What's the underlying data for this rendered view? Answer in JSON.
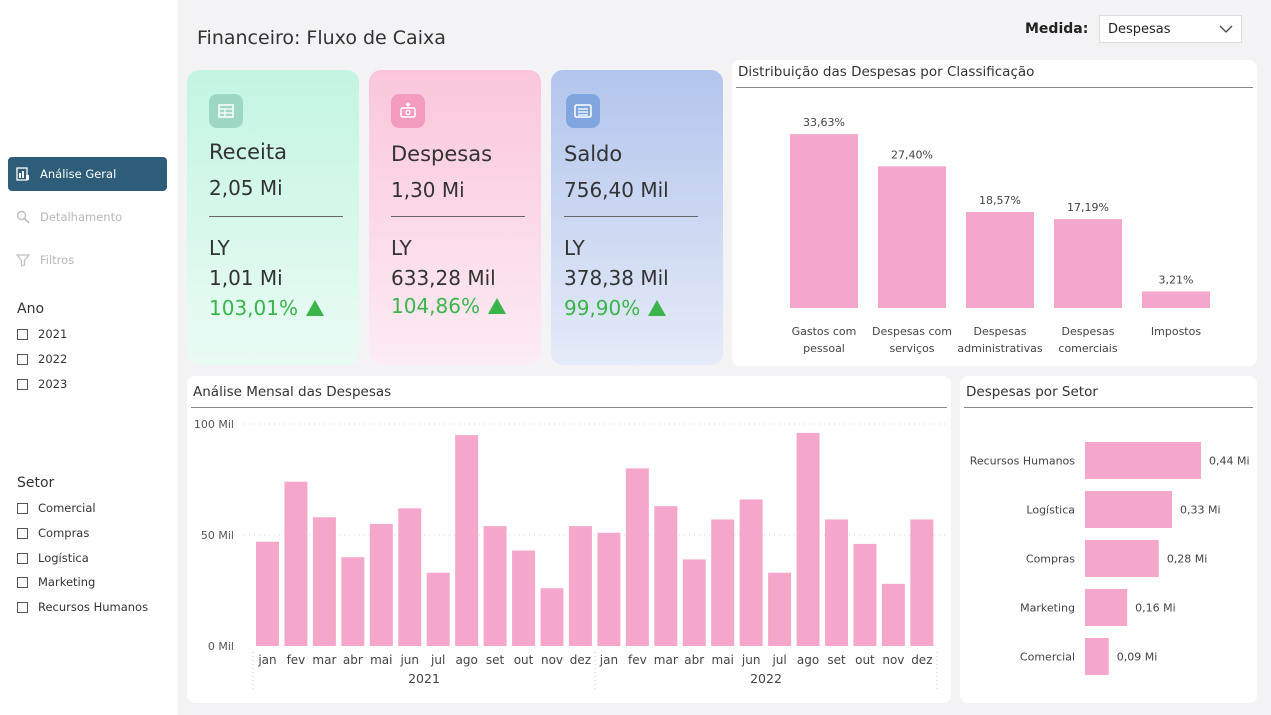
{
  "header": {
    "title": "Financeiro: Fluxo de Caixa",
    "medida_label": "Medida:",
    "medida_value": "Despesas"
  },
  "sidebar": {
    "nav": [
      {
        "label": "Análise Geral",
        "icon": "report-icon",
        "active": true
      },
      {
        "label": "Detalhamento",
        "icon": "search-icon",
        "active": false
      },
      {
        "label": "Filtros",
        "icon": "filter-icon",
        "active": false
      }
    ],
    "ano": {
      "title": "Ano",
      "options": [
        "2021",
        "2022",
        "2023"
      ]
    },
    "setor": {
      "title": "Setor",
      "options": [
        "Comercial",
        "Compras",
        "Logística",
        "Marketing",
        "Recursos Humanos"
      ]
    }
  },
  "kpis": [
    {
      "label": "Receita",
      "value": "2,05 Mi",
      "ly_label": "LY",
      "ly_value": "1,01 Mi",
      "delta": "103,01%",
      "icon": "table-icon"
    },
    {
      "label": "Despesas",
      "value": "1,30 Mi",
      "ly_label": "LY",
      "ly_value": "633,28 Mil",
      "delta": "104,86%",
      "icon": "money-out-icon"
    },
    {
      "label": "Saldo",
      "value": "756,40 Mil",
      "ly_label": "LY",
      "ly_value": "378,38 Mil",
      "delta": "99,90%",
      "icon": "cash-icon"
    }
  ],
  "colors": {
    "bar": "#f4a7cb",
    "accent": "#2d5d78",
    "positive": "#3ab54a",
    "receita_top": "#c3f5e2",
    "despesas_top": "#fbc6dc",
    "saldo_top": "#b3c5ec"
  },
  "chart_data": [
    {
      "id": "classificacao",
      "type": "bar",
      "title": "Distribuição das Despesas por Classificação",
      "categories": [
        [
          "Gastos com",
          "pessoal"
        ],
        [
          "Despesas com",
          "serviços"
        ],
        [
          "Despesas",
          "administrativas"
        ],
        [
          "Despesas",
          "comerciais"
        ],
        [
          "Impostos"
        ]
      ],
      "values": [
        33.63,
        27.4,
        18.57,
        17.19,
        3.21
      ],
      "labels": [
        "33,63%",
        "27,40%",
        "18,57%",
        "17,19%",
        "3,21%"
      ],
      "ylim": [
        0,
        35
      ]
    },
    {
      "id": "mensal",
      "type": "bar",
      "title": "Análise Mensal das Despesas",
      "months": [
        "jan",
        "fev",
        "mar",
        "abr",
        "mai",
        "jun",
        "jul",
        "ago",
        "set",
        "out",
        "nov",
        "dez",
        "jan",
        "fev",
        "mar",
        "abr",
        "mai",
        "jun",
        "jul",
        "ago",
        "set",
        "out",
        "nov",
        "dez"
      ],
      "years": [
        "2021",
        "2022"
      ],
      "values": [
        47,
        74,
        58,
        40,
        55,
        62,
        33,
        95,
        54,
        43,
        26,
        54,
        51,
        80,
        63,
        39,
        57,
        66,
        33,
        96,
        57,
        46,
        28,
        57
      ],
      "yticks": [
        "0 Mil",
        "50 Mil",
        "100 Mil"
      ],
      "ylim": [
        0,
        100
      ]
    },
    {
      "id": "setor",
      "type": "bar",
      "orientation": "horizontal",
      "title": "Despesas por Setor",
      "categories": [
        "Recursos Humanos",
        "Logística",
        "Compras",
        "Marketing",
        "Comercial"
      ],
      "values": [
        0.44,
        0.33,
        0.28,
        0.16,
        0.09
      ],
      "labels": [
        "0,44 Mi",
        "0,33 Mi",
        "0,28 Mi",
        "0,16 Mi",
        "0,09 Mi"
      ]
    }
  ]
}
